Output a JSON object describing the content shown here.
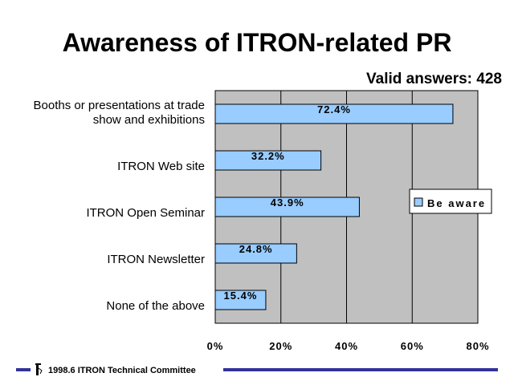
{
  "chart_data": {
    "type": "bar",
    "orientation": "horizontal",
    "title": "Awareness of ITRON-related PR",
    "subtitle": "Valid answers: 428",
    "categories": [
      [
        "Booths or presentations at trade",
        "show and exhibitions"
      ],
      [
        "ITRON Web site"
      ],
      [
        "ITRON Open Seminar"
      ],
      [
        "ITRON Newsletter"
      ],
      [
        "None of the above"
      ]
    ],
    "series": [
      {
        "name": "Be aware",
        "values": [
          72.4,
          32.2,
          43.9,
          24.8,
          15.4
        ],
        "value_labels": [
          "72.4%",
          "32.2%",
          "43.9%",
          "24.8%",
          "15.4%"
        ]
      }
    ],
    "xlim": [
      0,
      80
    ],
    "ticks": [
      0,
      20,
      40,
      60,
      80
    ],
    "tick_labels": [
      "0%",
      "20%",
      "40%",
      "60%",
      "80%"
    ],
    "grid": true,
    "legend_position": "right",
    "colors": {
      "bar_fill": "#99CCFF",
      "plot_background": "#C0C0C0",
      "footer_line": "#333399"
    }
  },
  "footer": {
    "text": "1998.6  ITRON Technical Committee"
  }
}
